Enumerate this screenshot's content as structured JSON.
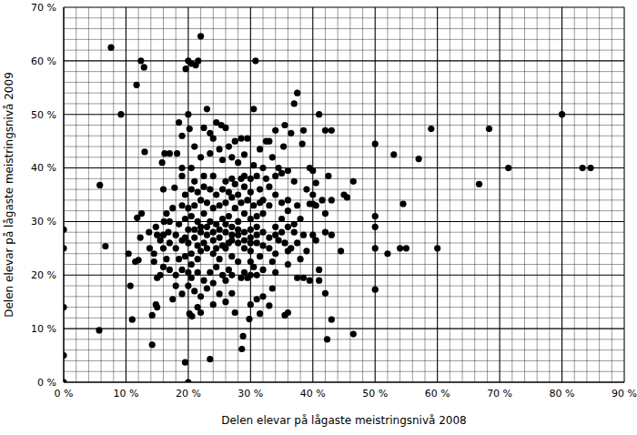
{
  "chart_data": {
    "type": "scatter",
    "x_label": "Delen elevar på lågaste meistringsnivå 2008",
    "y_label": "Delen elevar på lågaste meistringsnivå 2009",
    "color": "#000000",
    "marker": "circle",
    "grid": true,
    "xlim": [
      0,
      90
    ],
    "xticks": [
      {
        "value": 0,
        "label": "0 %"
      },
      {
        "value": 10,
        "label": "10 %"
      },
      {
        "value": 20,
        "label": "20 %"
      },
      {
        "value": 30,
        "label": "30 %"
      },
      {
        "value": 40,
        "label": "40 %"
      },
      {
        "value": 50,
        "label": "50 %"
      },
      {
        "value": 60,
        "label": "60 %"
      },
      {
        "value": 70,
        "label": "70 %"
      },
      {
        "value": 80,
        "label": "80 %"
      },
      {
        "value": 90,
        "label": "90 %"
      }
    ],
    "ylim": [
      0,
      70
    ],
    "yticks": [
      {
        "value": 0,
        "label": "0 %"
      },
      {
        "value": 10,
        "label": "10 %"
      },
      {
        "value": 20,
        "label": "20 %"
      },
      {
        "value": 30,
        "label": "30 %"
      },
      {
        "value": 40,
        "label": "40 %"
      },
      {
        "value": 50,
        "label": "50 %"
      },
      {
        "value": 60,
        "label": "60 %"
      },
      {
        "value": 70,
        "label": "70 %"
      }
    ],
    "x": [
      0,
      0,
      0,
      0,
      0,
      5.7,
      5.8,
      6.7,
      7.6,
      9.2,
      11.7,
      12.4,
      12.9,
      13,
      11,
      10.7,
      10.4,
      11.5,
      12,
      12.3,
      12.5,
      11.8,
      14.2,
      14.2,
      14.8,
      15,
      19.5,
      20,
      20.2,
      20.6,
      19.6,
      20,
      20.5,
      21.2,
      22,
      21.6,
      20,
      20.2,
      23,
      24.5,
      25.3,
      30.8,
      30.5,
      37,
      37.5,
      38.5,
      41,
      42,
      43,
      40.5,
      45,
      45.5,
      46.5,
      44.5,
      43,
      42.3,
      46.5,
      42,
      50,
      50,
      50,
      50,
      50,
      52,
      53,
      54,
      55,
      54.5,
      57,
      59,
      60,
      66.7,
      68.3,
      71.4,
      80,
      83.3,
      84.6,
      23.5,
      28.6,
      28.8,
      29.8,
      31.5,
      33,
      35.5,
      36,
      37.5,
      38.5,
      39.5,
      33.5,
      31,
      27,
      25,
      22,
      17.5,
      18,
      15,
      15.5,
      16.5,
      16,
      16.8,
      17,
      17.5,
      16.2,
      17,
      18.2,
      19,
      19,
      15.8,
      16,
      16.5,
      14.5,
      14.5,
      13.8,
      13.7,
      16.1,
      17.8,
      20.5,
      21,
      22.5,
      24,
      23.5,
      25.5,
      26.5,
      27.5,
      28.5,
      29.5,
      28,
      26,
      27,
      29,
      30,
      31,
      32.5,
      31.5,
      32,
      33,
      34,
      35,
      36,
      35.3,
      33.5,
      32.5,
      31.5,
      34.5,
      38.3,
      39.5,
      40,
      37,
      36,
      37.5,
      38,
      39.5,
      40,
      40.5,
      41.5,
      42,
      43,
      42,
      43,
      40,
      40.5,
      37,
      37,
      36.5,
      36,
      35.5,
      34.5,
      34,
      33.5,
      32,
      31,
      30,
      29,
      28.5,
      29.5,
      30.5,
      31.5,
      30,
      29,
      28,
      27,
      26.5,
      25.5,
      24.5,
      23.5,
      22.5,
      21.5,
      20.5,
      20,
      19,
      18.5,
      19.5,
      20.5,
      21.5,
      22,
      23,
      24,
      25,
      26,
      27,
      28,
      29,
      30,
      31,
      32,
      33,
      34,
      35,
      36,
      35,
      34,
      33,
      32,
      31,
      30,
      29,
      28,
      27,
      26,
      25,
      24,
      23,
      22,
      21,
      20,
      19,
      18,
      18.5,
      19.5,
      20.5,
      21.5,
      22.5,
      23.5,
      24.5,
      25.5,
      26.5,
      27.5,
      28.5,
      29.5,
      30.5,
      31.5,
      30,
      29,
      28,
      27,
      26,
      25,
      24,
      23,
      22,
      21,
      20,
      19,
      19.5,
      20.5,
      21.5,
      22.5,
      23.5,
      24.5,
      25.5,
      26.5,
      27.5,
      28.5,
      30.5,
      32,
      29,
      27,
      25,
      24,
      22,
      21,
      20,
      21,
      22,
      23,
      24,
      25,
      26,
      27,
      28,
      29,
      30,
      31,
      32,
      33,
      34,
      35,
      36,
      30,
      28,
      27,
      26,
      24,
      23,
      21,
      20,
      19,
      18,
      17,
      16,
      15.5,
      15,
      14.8,
      22,
      21.5,
      24,
      26,
      27.5,
      30,
      32,
      34,
      36,
      38,
      39,
      41,
      41,
      37.5,
      38.5,
      39,
      40,
      42.5,
      33,
      34,
      35.5,
      36.5,
      26,
      23.5,
      22.5,
      19,
      18.5,
      30,
      31,
      26.5,
      25.5,
      24.5,
      22.5,
      21.5,
      20.5,
      19.5,
      18,
      17,
      16
    ],
    "values": [
      28.5,
      25,
      14,
      5,
      0,
      9.7,
      36.8,
      25.4,
      62.5,
      50,
      55.5,
      60,
      58.8,
      43,
      11.7,
      18,
      24,
      22.5,
      22.8,
      27,
      31.5,
      30.7,
      7,
      12.5,
      14.5,
      14,
      3.7,
      0,
      12.8,
      12.3,
      58.5,
      60,
      59.5,
      59.2,
      64.6,
      60,
      50,
      47.3,
      51,
      48.5,
      48,
      60,
      51,
      52,
      54,
      47,
      50,
      47,
      47,
      37.2,
      35,
      34.5,
      37.5,
      24.5,
      11.7,
      8,
      9,
      16.6,
      44.5,
      31,
      29,
      25,
      17.3,
      24,
      42.5,
      25,
      25,
      33.3,
      41.7,
      47.3,
      25,
      37,
      47.3,
      40,
      50,
      40,
      40,
      4.3,
      6.2,
      8.6,
      11.8,
      12.8,
      14.3,
      12.5,
      13,
      19.5,
      19.5,
      19,
      17.5,
      15.5,
      16.6,
      16.5,
      16,
      15.5,
      18,
      19.5,
      20,
      23,
      25,
      28,
      30,
      32.5,
      42.7,
      42.7,
      42.7,
      40,
      38.5,
      41,
      36,
      31.5,
      24,
      22.5,
      25,
      28,
      30,
      36.3,
      40,
      37.5,
      38.5,
      38.5,
      42.7,
      41.5,
      44,
      45,
      45.5,
      45.5,
      41,
      37.5,
      38,
      38.5,
      38,
      38.5,
      38,
      36,
      34,
      33,
      38.5,
      39,
      39.5,
      44,
      42,
      45,
      43.5,
      40,
      44.5,
      40,
      39.5,
      37.5,
      34,
      33,
      30.5,
      33.3,
      33.3,
      33,
      34,
      31.5,
      34,
      28,
      27.5,
      27.5,
      26.5,
      29.5,
      28,
      25,
      24.5,
      26,
      26.5,
      24,
      22.5,
      21,
      20,
      20,
      20.5,
      19.5,
      19.5,
      21.5,
      23.5,
      24.5,
      25,
      26,
      23.5,
      21,
      20,
      21.5,
      20.5,
      19,
      20.5,
      19.5,
      20.5,
      21,
      23,
      23.5,
      24,
      23,
      24.5,
      25,
      24,
      23,
      25,
      26.5,
      27.5,
      28,
      28.5,
      29,
      28,
      27,
      29,
      30.5,
      32,
      33.5,
      35,
      36.5,
      31.5,
      31,
      30.5,
      31.5,
      30,
      29,
      28,
      27,
      26.5,
      27.5,
      28,
      27,
      26,
      26.5,
      27.5,
      29.5,
      30.5,
      31,
      30,
      31.5,
      30,
      29.5,
      30.5,
      31,
      32.5,
      33.5,
      34,
      33,
      33.5,
      35.5,
      36.5,
      35,
      34.5,
      33.5,
      33,
      32.5,
      33.5,
      34,
      33,
      32.5,
      33,
      35,
      36,
      35.5,
      36.5,
      36,
      35,
      36,
      35.5,
      37,
      38,
      40.5,
      40,
      42.5,
      42,
      43.5,
      45.5,
      42,
      44,
      28.5,
      28.5,
      29,
      29,
      28,
      28.5,
      29.5,
      27.5,
      28.5,
      26.5,
      27,
      26,
      25.5,
      25,
      27.5,
      28,
      29,
      22.5,
      22.5,
      20,
      19,
      18.5,
      17.5,
      17,
      18,
      16.5,
      20,
      21,
      21.5,
      26.5,
      27.5,
      29,
      13,
      14,
      14.5,
      15,
      13,
      14.5,
      16,
      20.5,
      22,
      23,
      24.5,
      21,
      19,
      26,
      27.5,
      36,
      35,
      38.5,
      45,
      47,
      48,
      46.5,
      47.5,
      46.5,
      47.5,
      46,
      48.5,
      26,
      27.5,
      26,
      25.5,
      25,
      26,
      25.5,
      22,
      27,
      25,
      26,
      27.5
    ]
  }
}
